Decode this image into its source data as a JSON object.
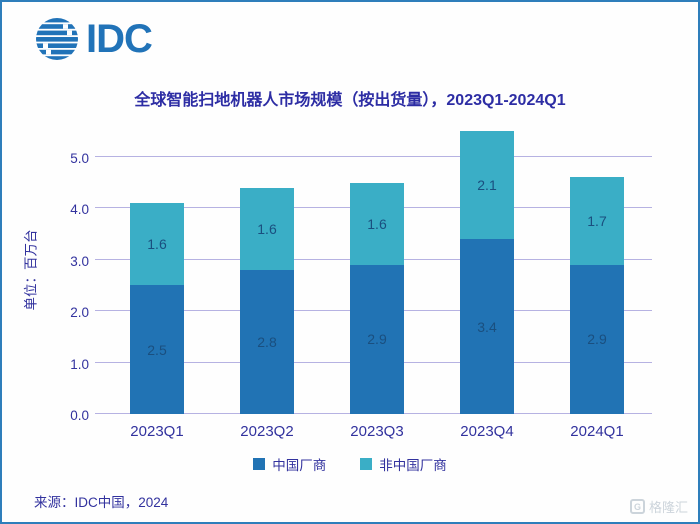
{
  "window": {
    "border_color": "#2e7ebb",
    "background": "#fefefe"
  },
  "logo": {
    "text": "IDC",
    "color": "#2173b8"
  },
  "chart_data": {
    "type": "bar",
    "stacked": true,
    "title": "全球智能扫地机器人市场规模（按出货量），2023Q1-2024Q1",
    "unit_label": "单位：百万台",
    "categories": [
      "2023Q1",
      "2023Q2",
      "2023Q3",
      "2023Q4",
      "2024Q1"
    ],
    "series": [
      {
        "name": "中国厂商",
        "color": "#2173b4",
        "values": [
          2.5,
          2.8,
          2.9,
          3.4,
          2.9
        ]
      },
      {
        "name": "非中国厂商",
        "color": "#3aaec6",
        "values": [
          1.6,
          1.6,
          1.6,
          2.1,
          1.7
        ]
      }
    ],
    "totals": [
      4.1,
      4.4,
      4.5,
      5.5,
      4.6
    ],
    "y_ticks": [
      "0.0",
      "1.0",
      "2.0",
      "3.0",
      "4.0",
      "5.0"
    ],
    "ylim": [
      0,
      5.6
    ],
    "grid": true,
    "legend_position": "bottom",
    "gridline_color": "#b6b2e2",
    "axis_text_color": "#32329e",
    "label_color": "#1a4f7f"
  },
  "footer": {
    "source": "来源：IDC中国，2024"
  },
  "watermark": {
    "icon_letter": "G",
    "text": "格隆汇"
  }
}
